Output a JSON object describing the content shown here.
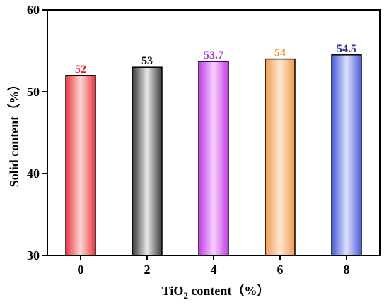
{
  "chart_data": {
    "type": "bar",
    "categories": [
      "0",
      "2",
      "4",
      "6",
      "8"
    ],
    "values": [
      52,
      53,
      53.7,
      54,
      54.5
    ],
    "data_labels": [
      "52",
      "53",
      "53.7",
      "54",
      "54.5"
    ],
    "title": "",
    "xlabel": {
      "prefix": "TiO",
      "subscript": "2",
      "suffix": " content（%）"
    },
    "ylabel": "Solid content（%）",
    "ylim": [
      30,
      60
    ],
    "yticks": [
      "30",
      "40",
      "50",
      "60"
    ],
    "grid": false,
    "legend": "none",
    "bar_colors": [
      {
        "dark": "#e8373e",
        "light": "#ffd6d6",
        "label": "#d41f28"
      },
      {
        "dark": "#3a3a3a",
        "light": "#e8e8e8",
        "label": "#111111"
      },
      {
        "dark": "#c23fe6",
        "light": "#f6d0ff",
        "label": "#a832d6"
      },
      {
        "dark": "#f09a52",
        "light": "#ffe6cf",
        "label": "#ee8a30"
      },
      {
        "dark": "#4a5bd6",
        "light": "#dde2ff",
        "label": "#24338f"
      }
    ]
  }
}
